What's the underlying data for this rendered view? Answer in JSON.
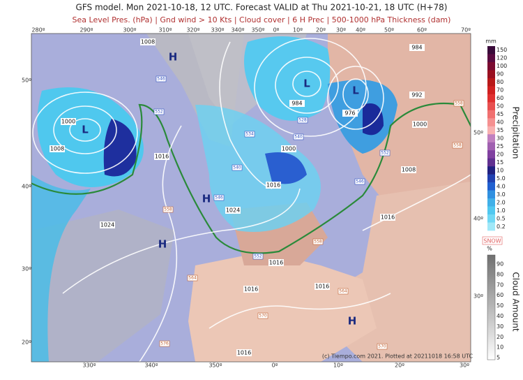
{
  "header": {
    "title": "GFS model. Mon 2021-10-18, 12 UTC. Forecast VALID at Thu 2021-10-21, 18 UTC (H+78)",
    "subtitle": "Sea Level Pres. (hPa) | Gnd wind > 10 Kts | Cloud cover | 6 H Prec | 500-1000 hPa Thickness (dam)"
  },
  "map": {
    "top_longitudes": [
      "280º",
      "290º",
      "300º",
      "310º",
      "320º",
      "330º",
      "340º",
      "350º",
      "0º",
      "10º",
      "20º",
      "30º",
      "40º",
      "50º",
      "60º",
      "70º"
    ],
    "bottom_longitudes": [
      "330º",
      "340º",
      "350º",
      "0º",
      "10º",
      "20º",
      "30º"
    ],
    "left_latitudes": [
      "50º",
      "40º",
      "30º",
      "20º"
    ],
    "right_latitudes": [
      "50º",
      "40º",
      "30º"
    ],
    "isobar_labels": [
      "1008",
      "984",
      "992",
      "1000",
      "1000",
      "984",
      "976",
      "1008",
      "1016",
      "1000",
      "1016",
      "1008",
      "1024",
      "1016",
      "1024",
      "1016",
      "1016",
      "1016",
      "1016"
    ],
    "pressure_centers": [
      "H",
      "H",
      "H",
      "H",
      "L",
      "L",
      "L"
    ],
    "thickness_labels": [
      "546",
      "552",
      "534",
      "540",
      "546",
      "552",
      "546",
      "540",
      "528",
      "558",
      "564",
      "570",
      "576",
      "558",
      "558",
      "564",
      "570",
      "552",
      "558"
    ],
    "credit": "(c) Tiempo.com 2021. Plotted at 20211018 16:58 UTC"
  },
  "legend": {
    "precip_unit": "mm",
    "precip_ticks": [
      "150",
      "120",
      "100",
      "90",
      "80",
      "70",
      "60",
      "50",
      "45",
      "40",
      "35",
      "30",
      "25",
      "20",
      "15",
      "10",
      "5.0",
      "4.0",
      "3.0",
      "2.0",
      "1.0",
      "0.5",
      "0.2"
    ],
    "precip_title": "Precipitation",
    "snow": "SNOW",
    "cloud_unit": "%",
    "cloud_ticks": [
      "90",
      "80",
      "70",
      "60",
      "50",
      "40",
      "30",
      "20",
      "10",
      "5"
    ],
    "cloud_title": "Cloud Amount"
  }
}
